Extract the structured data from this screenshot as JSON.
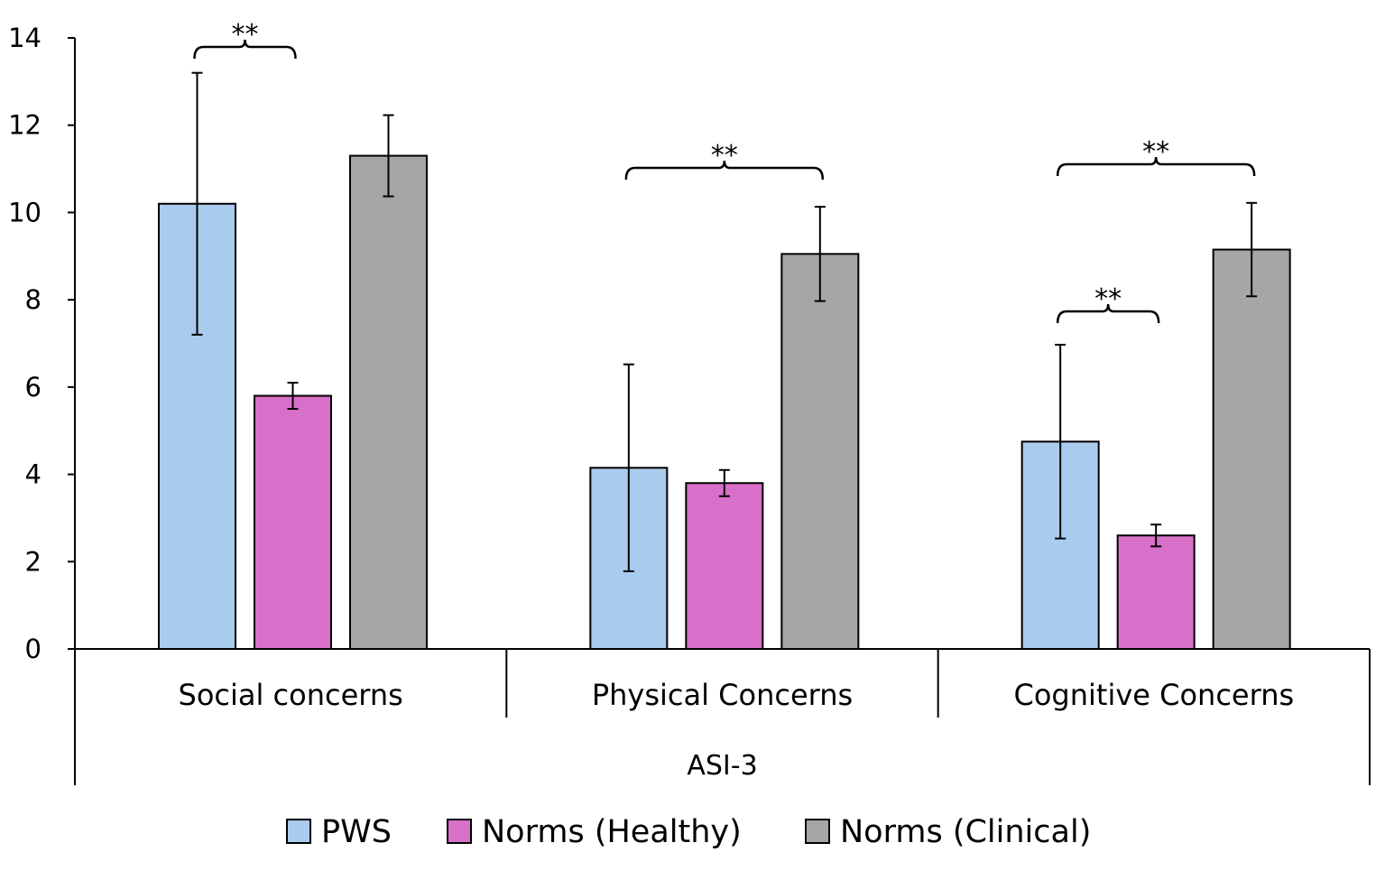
{
  "chart_data": {
    "type": "bar",
    "title": "",
    "xlabel": "ASI-3",
    "ylabel": "",
    "ylim": [
      0,
      14
    ],
    "yticks": [
      0,
      2,
      4,
      6,
      8,
      10,
      12,
      14
    ],
    "categories": [
      "Social concerns",
      "Physical Concerns",
      "Cognitive Concerns"
    ],
    "series": [
      {
        "name": "PWS",
        "color": "#a9cbee",
        "values": [
          10.2,
          4.15,
          4.75
        ],
        "errors": [
          3.0,
          2.37,
          2.22
        ]
      },
      {
        "name": "Norms (Healthy)",
        "color": "#d86fc8",
        "values": [
          5.8,
          3.8,
          2.6
        ],
        "errors": [
          0.3,
          0.3,
          0.25
        ]
      },
      {
        "name": "Norms (Clinical)",
        "color": "#a6a6a6",
        "values": [
          11.3,
          9.05,
          9.15
        ],
        "errors": [
          0.93,
          1.08,
          1.07
        ]
      }
    ],
    "annotations": [
      {
        "category": 0,
        "from_series": 0,
        "to_series": 1,
        "label": "**"
      },
      {
        "category": 1,
        "from_series": 0,
        "to_series": 2,
        "label": "**"
      },
      {
        "category": 2,
        "from_series": 0,
        "to_series": 2,
        "label": "**"
      },
      {
        "category": 2,
        "from_series": 0,
        "to_series": 1,
        "label": "**"
      }
    ],
    "legend": "bottom",
    "grid": false
  }
}
